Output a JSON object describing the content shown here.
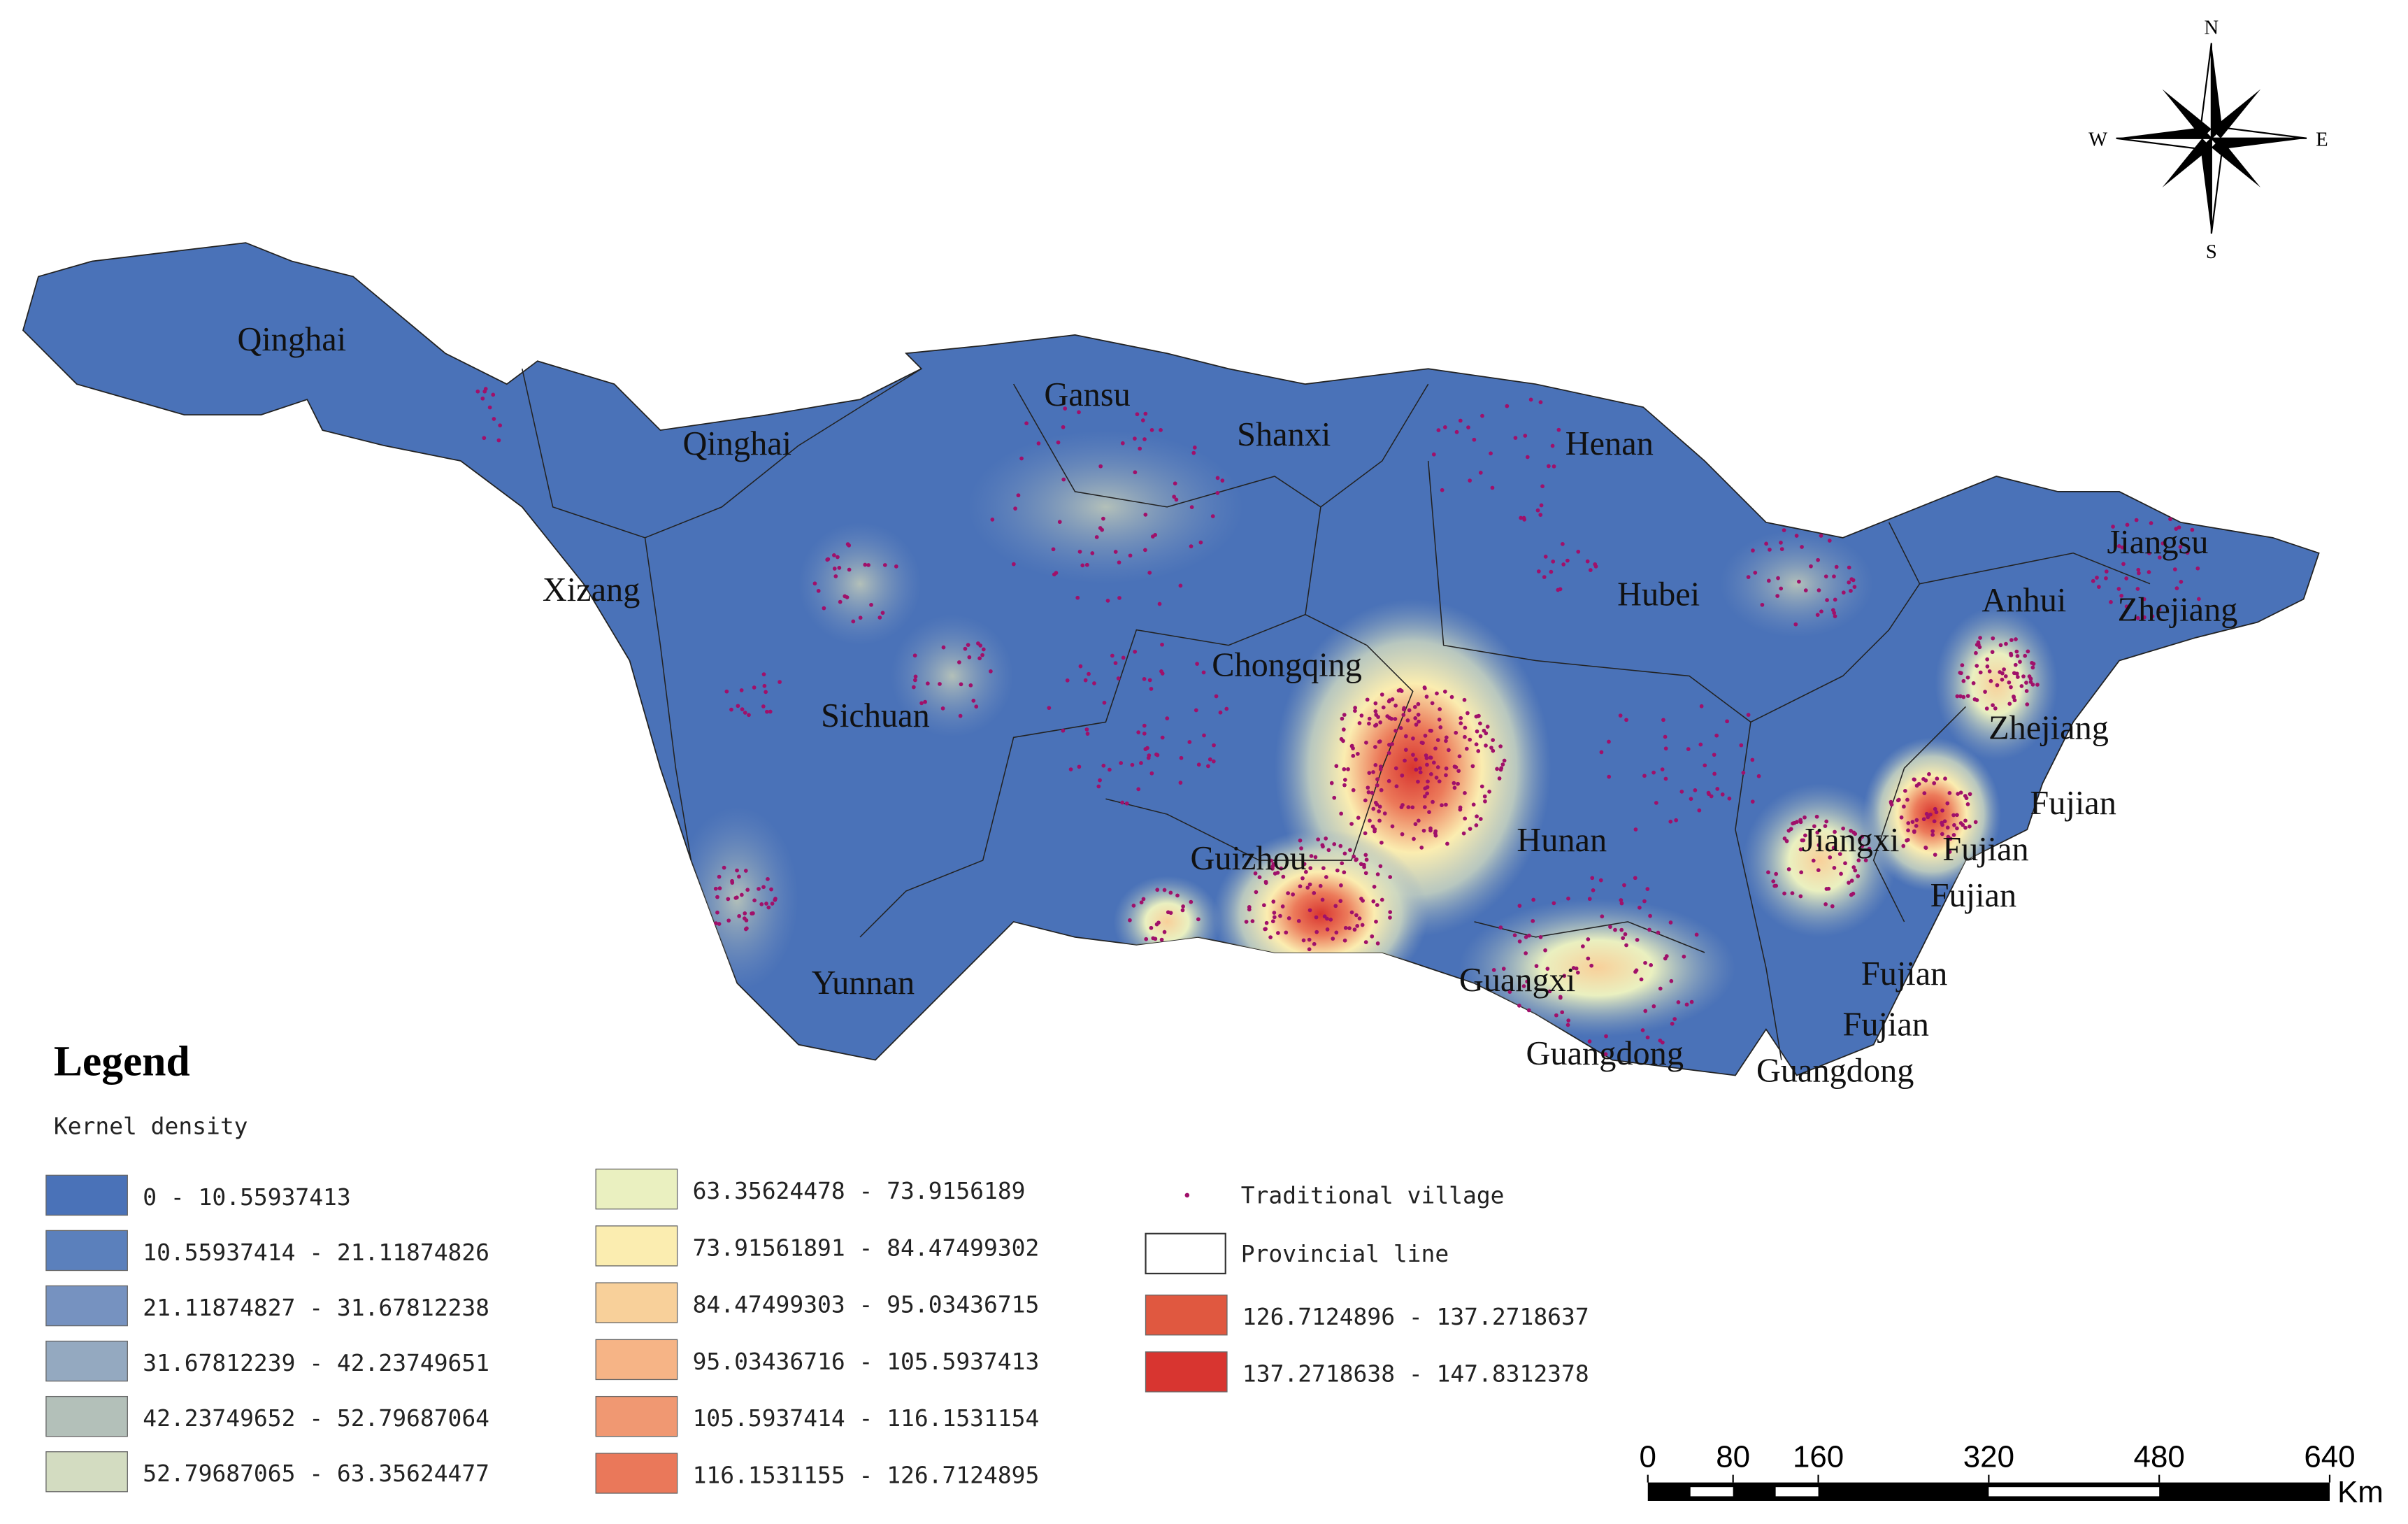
{
  "title": "Legend",
  "subtitle": "Kernel density",
  "labels": [
    "Qinghai",
    "Qinghai",
    "Gansu",
    "Shanxi",
    "Henan",
    "Xizang",
    "Sichuan",
    "Chongqing",
    "Hubei",
    "Jiangsu",
    "Anhui",
    "Zhejiang",
    "Zhejiang",
    "Fujian",
    "Jiangxi",
    "Fujian",
    "Fujian",
    "Guizhou",
    "Hunan",
    "Yunnan",
    "Guangxi",
    "Fujian",
    "Fujian",
    "Guangdong",
    "Guangdong"
  ],
  "legend": {
    "classes": [
      {
        "label": "0 - 10.55937413",
        "color": "#4a72b8"
      },
      {
        "label": "10.55937414 - 21.11874826",
        "color": "#5b80bc"
      },
      {
        "label": "21.11874827 - 31.67812238",
        "color": "#7692c0"
      },
      {
        "label": "31.67812239 - 42.23749651",
        "color": "#94a9c0"
      },
      {
        "label": "42.23749652 - 52.79687064",
        "color": "#b3c0b9"
      },
      {
        "label": "52.79687065 - 63.35624477",
        "color": "#d3dcc1"
      },
      {
        "label": "63.35624478 - 73.9156189",
        "color": "#eaf0c0"
      },
      {
        "label": "73.91561891 - 84.47499302",
        "color": "#fbedb0"
      },
      {
        "label": "84.47499303 - 95.03436715",
        "color": "#f8d09a"
      },
      {
        "label": "95.03436716 - 105.5937413",
        "color": "#f6b486"
      },
      {
        "label": "105.5937414 - 116.1531154",
        "color": "#f09872"
      },
      {
        "label": "116.1531155 - 126.7124895",
        "color": "#ea785a"
      },
      {
        "label": "126.7124896 - 137.2718637",
        "color": "#e05840"
      },
      {
        "label": "137.2718638 - 147.8312378",
        "color": "#d83530"
      }
    ],
    "village": "Traditional village",
    "province_line": "Provincial line"
  },
  "scale_bar": {
    "ticks": [
      0,
      80,
      160,
      320,
      480,
      640
    ],
    "unit": "Km"
  },
  "compass": {
    "n": "N",
    "s": "S",
    "e": "E",
    "w": "W"
  }
}
